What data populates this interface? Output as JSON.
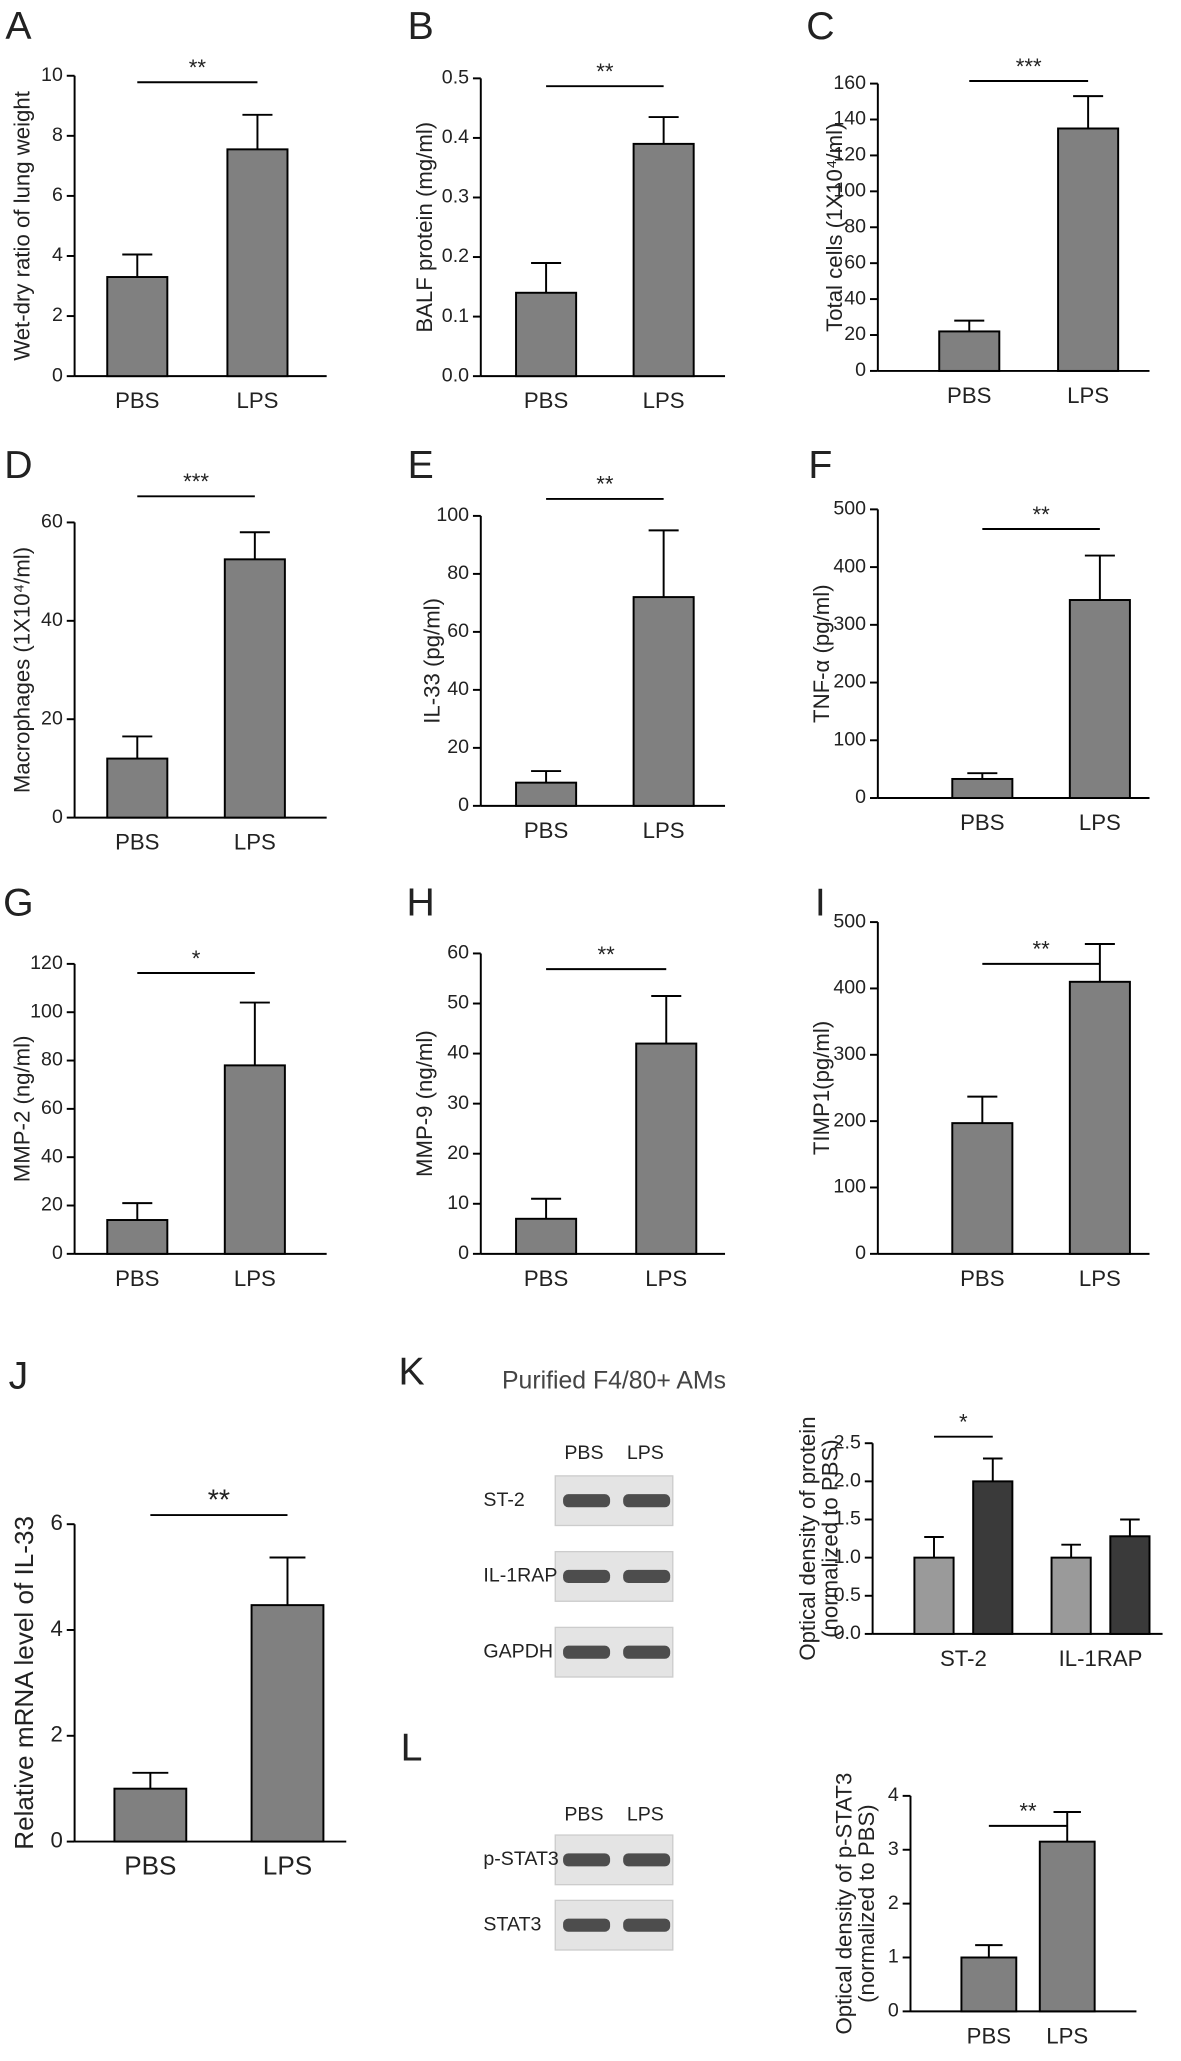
{
  "chart_data": [
    {
      "type": "bar",
      "panel": "A",
      "ylabel": "Wet-dry ratio of lung weight",
      "categories": [
        "PBS",
        "LPS"
      ],
      "values": [
        3.3,
        7.55
      ],
      "errors": [
        0.75,
        1.15
      ],
      "color": "#808080",
      "ylim": [
        0,
        10
      ],
      "yticks": [
        0,
        2,
        4,
        6,
        8,
        10
      ],
      "significance": "**"
    },
    {
      "type": "bar",
      "panel": "B",
      "ylabel": "BALF protein (mg/ml)",
      "categories": [
        "PBS",
        "LPS"
      ],
      "values": [
        0.14,
        0.39
      ],
      "errors": [
        0.05,
        0.045
      ],
      "color": "#808080",
      "ylim": [
        0,
        0.5
      ],
      "yticks": [
        {
          "value": 0,
          "label": "0.0"
        },
        0.1,
        0.2,
        0.3,
        0.4,
        0.5
      ],
      "significance": "**"
    },
    {
      "type": "bar",
      "panel": "C",
      "ylabel": "Total cells (1X10⁴/ml)",
      "categories": [
        "PBS",
        "LPS"
      ],
      "values": [
        22,
        135
      ],
      "errors": [
        6,
        18
      ],
      "color": "#808080",
      "ylim": [
        0,
        160
      ],
      "yticks": [
        0,
        20,
        40,
        60,
        80,
        100,
        120,
        140,
        160
      ],
      "significance": "***"
    },
    {
      "type": "bar",
      "panel": "D",
      "ylabel": "Macrophages (1X10⁴/ml)",
      "categories": [
        "PBS",
        "LPS"
      ],
      "values": [
        12,
        52.5
      ],
      "errors": [
        4.5,
        5.5
      ],
      "color": "#808080",
      "ylim": [
        0,
        60
      ],
      "yticks": [
        0,
        20,
        40,
        60
      ],
      "significance": "***"
    },
    {
      "type": "bar",
      "panel": "E",
      "ylabel": "IL-33 (pg/ml)",
      "categories": [
        "PBS",
        "LPS"
      ],
      "values": [
        8,
        72
      ],
      "errors": [
        4,
        23
      ],
      "color": "#808080",
      "ylim": [
        0,
        100
      ],
      "yticks": [
        0,
        20,
        40,
        60,
        80,
        100
      ],
      "significance": "**"
    },
    {
      "type": "bar",
      "panel": "F",
      "ylabel": "TNF-α (pg/ml)",
      "categories": [
        "PBS",
        "LPS"
      ],
      "values": [
        33,
        343
      ],
      "errors": [
        10,
        77
      ],
      "color": "#808080",
      "ylim": [
        0,
        500
      ],
      "yticks": [
        0,
        100,
        200,
        300,
        400,
        500
      ],
      "significance": "**"
    },
    {
      "type": "bar",
      "panel": "G",
      "ylabel": "MMP-2 (ng/ml)",
      "categories": [
        "PBS",
        "LPS"
      ],
      "values": [
        14,
        78
      ],
      "errors": [
        7,
        26
      ],
      "color": "#808080",
      "ylim": [
        0,
        120
      ],
      "yticks": [
        0,
        20,
        40,
        60,
        80,
        100,
        120
      ],
      "significance": "*"
    },
    {
      "type": "bar",
      "panel": "H",
      "ylabel": "MMP-9 (ng/ml)",
      "categories": [
        "PBS",
        "LPS"
      ],
      "values": [
        7,
        42
      ],
      "errors": [
        4,
        9.5
      ],
      "color": "#808080",
      "ylim": [
        0,
        60
      ],
      "yticks": [
        0,
        10,
        20,
        30,
        40,
        50,
        60
      ],
      "significance": "**"
    },
    {
      "type": "bar",
      "panel": "I",
      "ylabel": "TIMP1(pg/ml)",
      "categories": [
        "PBS",
        "LPS"
      ],
      "values": [
        197,
        410
      ],
      "errors": [
        40,
        57
      ],
      "color": "#808080",
      "ylim": [
        0,
        500
      ],
      "yticks": [
        0,
        100,
        200,
        300,
        400,
        500
      ],
      "significance": "**"
    },
    {
      "type": "bar",
      "panel": "J",
      "ylabel": "Relative mRNA level of IL-33",
      "categories": [
        "PBS",
        "LPS"
      ],
      "values": [
        1.0,
        4.47
      ],
      "errors": [
        0.3,
        0.9
      ],
      "color": "#808080",
      "ylim": [
        0,
        6
      ],
      "yticks": [
        0,
        2,
        4,
        6
      ],
      "significance": "**"
    },
    {
      "type": "bar",
      "ylabel": [
        "Optical density of protein",
        "(normalized to PBS)"
      ],
      "categories": [
        "ST-2",
        "IL-1RAP"
      ],
      "series": [
        {
          "color": "#9a9a9a",
          "values": [
            1.0,
            1.0
          ],
          "errors": [
            0.27,
            0.17
          ]
        },
        {
          "color": "#3a3a3a",
          "values": [
            2.0,
            1.28
          ],
          "errors": [
            0.3,
            0.22
          ]
        }
      ],
      "ylim": [
        0,
        2.5
      ],
      "yticks": [
        {
          "value": 0,
          "label": "0.0"
        },
        0.5,
        {
          "value": 1,
          "label": "1.0"
        },
        1.5,
        {
          "value": 2,
          "label": "2.0"
        },
        2.5
      ],
      "significance": "*"
    },
    {
      "type": "bar",
      "ylabel": [
        "Optical density of p-STAT3",
        "(normalized to PBS)"
      ],
      "categories": [
        "PBS",
        "LPS"
      ],
      "values": [
        1.0,
        3.15
      ],
      "errors": [
        0.23,
        0.55
      ],
      "color": "#808080",
      "ylim": [
        0,
        4
      ],
      "yticks": [
        0,
        1,
        2,
        3,
        4
      ],
      "significance": "**"
    }
  ],
  "blots": [
    {
      "panel": "K",
      "title": "Purified F4/80+ AMs",
      "columns": [
        "PBS",
        "LPS"
      ],
      "rows": [
        "ST-2",
        "IL-1RAP",
        "GAPDH"
      ]
    },
    {
      "panel": "L",
      "columns": [
        "PBS",
        "LPS"
      ],
      "rows": [
        "p-STAT3",
        "STAT3"
      ]
    }
  ]
}
